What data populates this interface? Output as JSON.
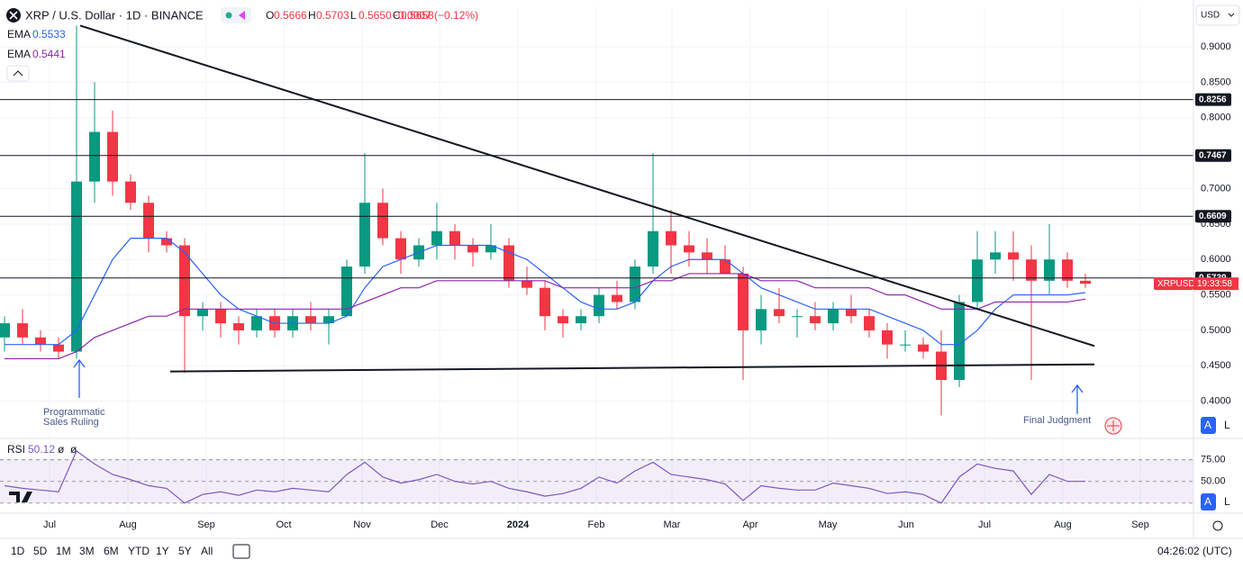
{
  "header": {
    "title": "XRP / U.S. Dollar · 1D · BINANCE",
    "ohlc": [
      {
        "label": "O",
        "value": "0.5666"
      },
      {
        "label": "H",
        "value": "0.5703"
      },
      {
        "label": "L",
        "value": "0.5650"
      },
      {
        "label": "C",
        "value": "0.5658"
      }
    ],
    "change": "−0.0007 (−0.12%)"
  },
  "axis_controls": {
    "currency": "USD",
    "buttons": [
      "A",
      "L"
    ]
  },
  "toolbar": {
    "ranges": [
      "1D",
      "5D",
      "1M",
      "3M",
      "6M",
      "YTD",
      "1Y",
      "5Y",
      "All"
    ],
    "clock": "04:26:02 (UTC)"
  },
  "annotations": [
    {
      "lines": [
        "Programmatic",
        "Sales Ruling"
      ]
    },
    {
      "lines": [
        "Final Judgment"
      ]
    }
  ],
  "chart_data": [
    {
      "type": "candlestick",
      "symbol_label": "XRPUSD",
      "countdown": "19:33:58",
      "up_color": "#089981",
      "down_color": "#f23645",
      "open": [
        0.49,
        0.51,
        0.49,
        0.48,
        0.47,
        0.71,
        0.78,
        0.71,
        0.68,
        0.63,
        0.62,
        0.52,
        0.53,
        0.51,
        0.5,
        0.52,
        0.5,
        0.52,
        0.51,
        0.52,
        0.59,
        0.68,
        0.63,
        0.6,
        0.62,
        0.64,
        0.62,
        0.61,
        0.62,
        0.57,
        0.56,
        0.52,
        0.51,
        0.52,
        0.55,
        0.54,
        0.59,
        0.64,
        0.62,
        0.61,
        0.6,
        0.58,
        0.5,
        0.53,
        0.52,
        0.52,
        0.51,
        0.53,
        0.52,
        0.5,
        0.48,
        0.48,
        0.47,
        0.43,
        0.54,
        0.6,
        0.61,
        0.6,
        0.57,
        0.6,
        0.57
      ],
      "high": [
        0.52,
        0.53,
        0.5,
        0.49,
        0.93,
        0.85,
        0.81,
        0.72,
        0.69,
        0.64,
        0.63,
        0.54,
        0.54,
        0.52,
        0.53,
        0.53,
        0.53,
        0.54,
        0.53,
        0.6,
        0.75,
        0.7,
        0.64,
        0.63,
        0.68,
        0.65,
        0.63,
        0.65,
        0.63,
        0.59,
        0.57,
        0.53,
        0.53,
        0.56,
        0.57,
        0.6,
        0.75,
        0.67,
        0.64,
        0.63,
        0.62,
        0.59,
        0.55,
        0.56,
        0.53,
        0.54,
        0.54,
        0.55,
        0.53,
        0.51,
        0.5,
        0.49,
        0.5,
        0.55,
        0.64,
        0.64,
        0.64,
        0.62,
        0.65,
        0.61,
        0.58
      ],
      "low": [
        0.47,
        0.48,
        0.47,
        0.46,
        0.46,
        0.68,
        0.69,
        0.67,
        0.61,
        0.61,
        0.44,
        0.5,
        0.49,
        0.48,
        0.49,
        0.49,
        0.49,
        0.5,
        0.48,
        0.52,
        0.58,
        0.62,
        0.58,
        0.59,
        0.6,
        0.6,
        0.59,
        0.6,
        0.56,
        0.55,
        0.5,
        0.49,
        0.5,
        0.51,
        0.53,
        0.53,
        0.58,
        0.58,
        0.59,
        0.58,
        0.58,
        0.43,
        0.48,
        0.51,
        0.49,
        0.5,
        0.5,
        0.51,
        0.49,
        0.46,
        0.47,
        0.46,
        0.38,
        0.42,
        0.53,
        0.58,
        0.57,
        0.43,
        0.55,
        0.56,
        0.56
      ],
      "close": [
        0.51,
        0.49,
        0.48,
        0.47,
        0.71,
        0.78,
        0.71,
        0.68,
        0.63,
        0.62,
        0.52,
        0.53,
        0.51,
        0.5,
        0.52,
        0.5,
        0.52,
        0.51,
        0.52,
        0.59,
        0.68,
        0.63,
        0.6,
        0.62,
        0.64,
        0.62,
        0.61,
        0.62,
        0.57,
        0.56,
        0.52,
        0.51,
        0.52,
        0.55,
        0.54,
        0.59,
        0.64,
        0.62,
        0.61,
        0.6,
        0.58,
        0.5,
        0.53,
        0.52,
        0.52,
        0.51,
        0.53,
        0.52,
        0.5,
        0.48,
        0.48,
        0.47,
        0.43,
        0.54,
        0.6,
        0.61,
        0.6,
        0.57,
        0.6,
        0.57,
        0.5658
      ],
      "series": [
        {
          "name": "EMA",
          "color": "#2962ff",
          "values": [
            0.48,
            0.48,
            0.48,
            0.48,
            0.5,
            0.55,
            0.6,
            0.63,
            0.63,
            0.63,
            0.61,
            0.58,
            0.55,
            0.53,
            0.52,
            0.51,
            0.51,
            0.51,
            0.51,
            0.52,
            0.56,
            0.59,
            0.6,
            0.61,
            0.62,
            0.62,
            0.62,
            0.62,
            0.61,
            0.6,
            0.58,
            0.56,
            0.54,
            0.53,
            0.53,
            0.54,
            0.57,
            0.59,
            0.6,
            0.6,
            0.6,
            0.58,
            0.56,
            0.55,
            0.54,
            0.53,
            0.53,
            0.53,
            0.53,
            0.52,
            0.51,
            0.5,
            0.48,
            0.48,
            0.5,
            0.53,
            0.55,
            0.55,
            0.55,
            0.55,
            0.5533
          ]
        },
        {
          "name": "EMA",
          "color": "#8e24aa",
          "values": [
            0.46,
            0.46,
            0.46,
            0.46,
            0.47,
            0.49,
            0.5,
            0.51,
            0.52,
            0.52,
            0.53,
            0.53,
            0.53,
            0.53,
            0.53,
            0.53,
            0.53,
            0.53,
            0.53,
            0.53,
            0.54,
            0.55,
            0.56,
            0.56,
            0.57,
            0.57,
            0.57,
            0.57,
            0.57,
            0.57,
            0.57,
            0.56,
            0.56,
            0.56,
            0.56,
            0.56,
            0.57,
            0.57,
            0.58,
            0.58,
            0.58,
            0.58,
            0.57,
            0.57,
            0.57,
            0.56,
            0.56,
            0.56,
            0.56,
            0.55,
            0.55,
            0.54,
            0.53,
            0.53,
            0.53,
            0.54,
            0.54,
            0.54,
            0.54,
            0.54,
            0.5441
          ]
        }
      ],
      "levels": [
        0.8256,
        0.7467,
        0.6609,
        0.5739
      ],
      "trendlines": [
        {
          "x": [
            4.2,
            60.5
          ],
          "y": [
            0.93,
            0.478
          ]
        },
        {
          "x": [
            9.2,
            60.5
          ],
          "y": [
            0.442,
            0.452
          ]
        }
      ],
      "xlim": [
        -0.25,
        66
      ],
      "ylim": [
        0.35,
        0.956
      ],
      "xticks": [
        {
          "value": 2.5,
          "label": "Jul"
        },
        {
          "value": 6.85,
          "label": "Aug"
        },
        {
          "value": 11.2,
          "label": "Sep"
        },
        {
          "value": 15.5,
          "label": "Oct"
        },
        {
          "value": 19.85,
          "label": "Nov"
        },
        {
          "value": 24.15,
          "label": "Dec"
        },
        {
          "value": 28.5,
          "label": "2024"
        },
        {
          "value": 32.85,
          "label": "Feb"
        },
        {
          "value": 37.05,
          "label": "Mar"
        },
        {
          "value": 41.4,
          "label": "Apr"
        },
        {
          "value": 45.7,
          "label": "May"
        },
        {
          "value": 50.05,
          "label": "Jun"
        },
        {
          "value": 54.4,
          "label": "Jul"
        },
        {
          "value": 58.75,
          "label": "Aug"
        },
        {
          "value": 63.05,
          "label": "Sep"
        }
      ],
      "yticks": [
        {
          "value": 0.9,
          "label": "0.9000"
        },
        {
          "value": 0.85,
          "label": "0.8500"
        },
        {
          "value": 0.8,
          "label": "0.8000"
        },
        {
          "value": 0.7,
          "label": "0.7000"
        },
        {
          "value": 0.65,
          "label": "0.6500"
        },
        {
          "value": 0.6,
          "label": "0.6000"
        },
        {
          "value": 0.55,
          "label": "0.5500"
        },
        {
          "value": 0.5,
          "label": "0.5000"
        },
        {
          "value": 0.45,
          "label": "0.4500"
        },
        {
          "value": 0.4,
          "label": "0.4000"
        }
      ]
    },
    {
      "type": "line",
      "title": "RSI",
      "params": [
        "ø",
        "ø"
      ],
      "color": "#7e57c2",
      "values": [
        45,
        42,
        40,
        38,
        85,
        70,
        58,
        52,
        45,
        42,
        25,
        35,
        38,
        34,
        40,
        38,
        42,
        40,
        38,
        58,
        72,
        55,
        48,
        52,
        58,
        50,
        47,
        50,
        42,
        38,
        33,
        36,
        42,
        55,
        48,
        62,
        72,
        58,
        55,
        52,
        47,
        28,
        45,
        42,
        40,
        40,
        48,
        45,
        42,
        36,
        38,
        35,
        25,
        55,
        70,
        65,
        62,
        35,
        58,
        50,
        50.12
      ],
      "xlim": [
        -0.25,
        66
      ],
      "ylim": [
        16.5,
        98.4
      ],
      "band": [
        25,
        75
      ],
      "yticks": [
        {
          "value": 75,
          "label": "75.00"
        },
        {
          "value": 50,
          "label": "50.00"
        }
      ]
    }
  ]
}
